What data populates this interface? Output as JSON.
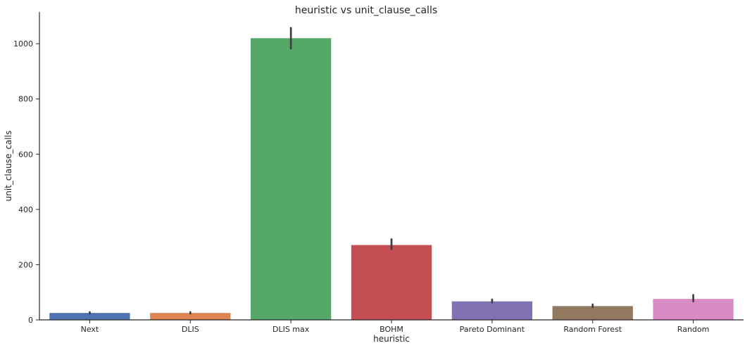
{
  "chart_data": {
    "type": "bar",
    "title": "heuristic vs unit_clause_calls",
    "xlabel": "heuristic",
    "ylabel": "unit_clause_calls",
    "categories": [
      "Next",
      "DLIS",
      "DLIS max",
      "BOHM",
      "Pareto Dominant",
      "Random Forest",
      "Random"
    ],
    "values": [
      25,
      25,
      1020,
      271,
      67,
      50,
      76
    ],
    "error_low": [
      23,
      23,
      983,
      256,
      63,
      46,
      67
    ],
    "error_high": [
      28,
      28,
      1057,
      292,
      74,
      56,
      90
    ],
    "colors": [
      "#4c72b0",
      "#dd8452",
      "#55a868",
      "#c44e52",
      "#8172b3",
      "#937860",
      "#da8bc3"
    ],
    "ylim": [
      0,
      1115
    ],
    "yticks": [
      0,
      200,
      400,
      600,
      800,
      1000
    ],
    "grid": false,
    "legend": "none"
  }
}
